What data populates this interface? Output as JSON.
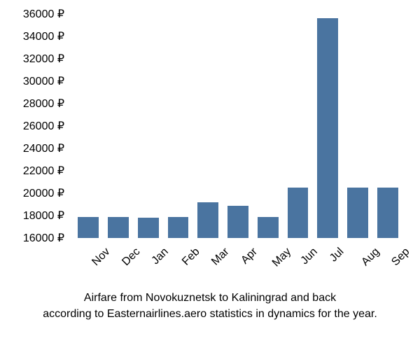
{
  "chart": {
    "type": "bar",
    "categories": [
      "Nov",
      "Dec",
      "Jan",
      "Feb",
      "Mar",
      "Apr",
      "May",
      "Jun",
      "Jul",
      "Aug",
      "Sep"
    ],
    "values": [
      17900,
      17900,
      17800,
      17900,
      19200,
      18900,
      17900,
      20500,
      35600,
      20500,
      20500
    ],
    "bar_color": "#4a74a0",
    "y_ticks": [
      16000,
      18000,
      20000,
      22000,
      24000,
      26000,
      28000,
      30000,
      32000,
      34000,
      36000
    ],
    "y_tick_labels": [
      "16000 ₽",
      "18000 ₽",
      "20000 ₽",
      "22000 ₽",
      "24000 ₽",
      "26000 ₽",
      "28000 ₽",
      "30000 ₽",
      "32000 ₽",
      "34000 ₽",
      "36000 ₽"
    ],
    "ylim_min": 16000,
    "ylim_max": 36000,
    "label_fontsize": 16,
    "label_color": "#000000",
    "background_color": "#ffffff",
    "bar_width_ratio": 0.7,
    "x_label_rotation": -45
  },
  "caption": {
    "line1": "Airfare from Novokuznetsk to Kaliningrad and back",
    "line2": "according to Easternairlines.aero statistics in dynamics for the year.",
    "fontsize": 16,
    "color": "#000000"
  }
}
